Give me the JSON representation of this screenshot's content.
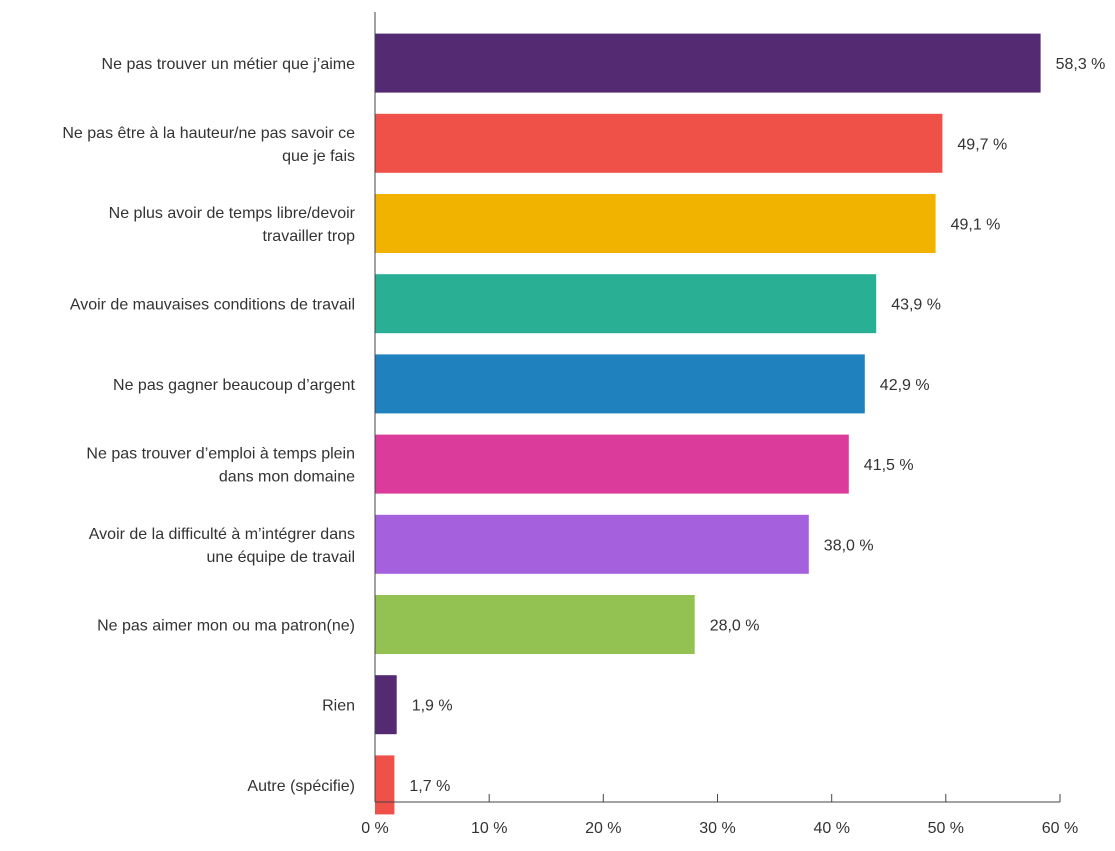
{
  "chart_data": {
    "type": "bar",
    "orientation": "horizontal",
    "categories": [
      [
        "Ne pas trouver un métier que j’aime"
      ],
      [
        "Ne pas être à la hauteur/ne pas savoir ce",
        "que je fais"
      ],
      [
        "Ne plus avoir de temps libre/devoir",
        "travailler trop"
      ],
      [
        "Avoir de mauvaises conditions de travail"
      ],
      [
        "Ne pas gagner beaucoup d’argent"
      ],
      [
        "Ne pas trouver d’emploi à temps plein",
        "dans mon domaine"
      ],
      [
        "Avoir de la difficulté à m’intégrer dans",
        "une équipe de travail"
      ],
      [
        "Ne pas aimer mon ou ma patron(ne)"
      ],
      [
        "Rien"
      ],
      [
        "Autre (spécifie)"
      ]
    ],
    "values": [
      58.3,
      49.7,
      49.1,
      43.9,
      42.9,
      41.5,
      38.0,
      28.0,
      1.9,
      1.7
    ],
    "value_labels": [
      "58,3 %",
      "49,7 %",
      "49,1 %",
      "43,9 %",
      "42,9 %",
      "41,5 %",
      "38,0 %",
      "28,0 %",
      "1,9 %",
      "1,7 %"
    ],
    "colors": [
      "#542a73",
      "#ef5149",
      "#f2b300",
      "#29af94",
      "#1f81bd",
      "#db3c9c",
      "#a561dd",
      "#93c152",
      "#542a73",
      "#ef5149"
    ],
    "xlim": [
      0,
      60
    ],
    "x_ticks": [
      0,
      10,
      20,
      30,
      40,
      50,
      60
    ],
    "x_tick_labels": [
      "0 %",
      "10 %",
      "20 %",
      "30 %",
      "40 %",
      "50 %",
      "60 %"
    ],
    "title": "",
    "xlabel": "",
    "ylabel": "",
    "grid": false,
    "legend": "none"
  }
}
